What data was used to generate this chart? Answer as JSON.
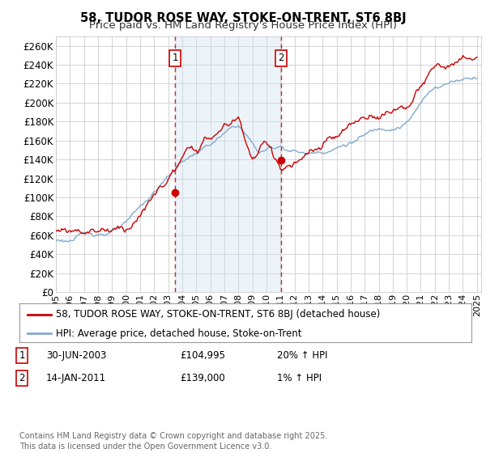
{
  "title": "58, TUDOR ROSE WAY, STOKE-ON-TRENT, ST6 8BJ",
  "subtitle": "Price paid vs. HM Land Registry's House Price Index (HPI)",
  "ylabel_ticks": [
    0,
    20000,
    40000,
    60000,
    80000,
    100000,
    120000,
    140000,
    160000,
    180000,
    200000,
    220000,
    240000,
    260000
  ],
  "x_start_year": 1995,
  "x_end_year": 2025,
  "purchase1_date": 2003.5,
  "purchase1_price": 104995,
  "purchase1_label": "1",
  "purchase2_date": 2011.04,
  "purchase2_price": 139000,
  "purchase2_label": "2",
  "line_color_red": "#cc0000",
  "line_color_blue": "#80aacc",
  "annotation_box_color": "#cc0000",
  "shaded_region_color": "#cce0f0",
  "grid_color": "#cccccc",
  "background_color": "#ffffff",
  "legend_label_red": "58, TUDOR ROSE WAY, STOKE-ON-TRENT, ST6 8BJ (detached house)",
  "legend_label_blue": "HPI: Average price, detached house, Stoke-on-Trent",
  "table_row1": [
    "1",
    "30-JUN-2003",
    "£104,995",
    "20% ↑ HPI"
  ],
  "table_row2": [
    "2",
    "14-JAN-2011",
    "£139,000",
    "1% ↑ HPI"
  ],
  "footnote": "Contains HM Land Registry data © Crown copyright and database right 2025.\nThis data is licensed under the Open Government Licence v3.0.",
  "title_fontsize": 10.5,
  "subtitle_fontsize": 9.5,
  "tick_fontsize": 8.5,
  "legend_fontsize": 8.5,
  "table_fontsize": 8.5,
  "footnote_fontsize": 7.0
}
